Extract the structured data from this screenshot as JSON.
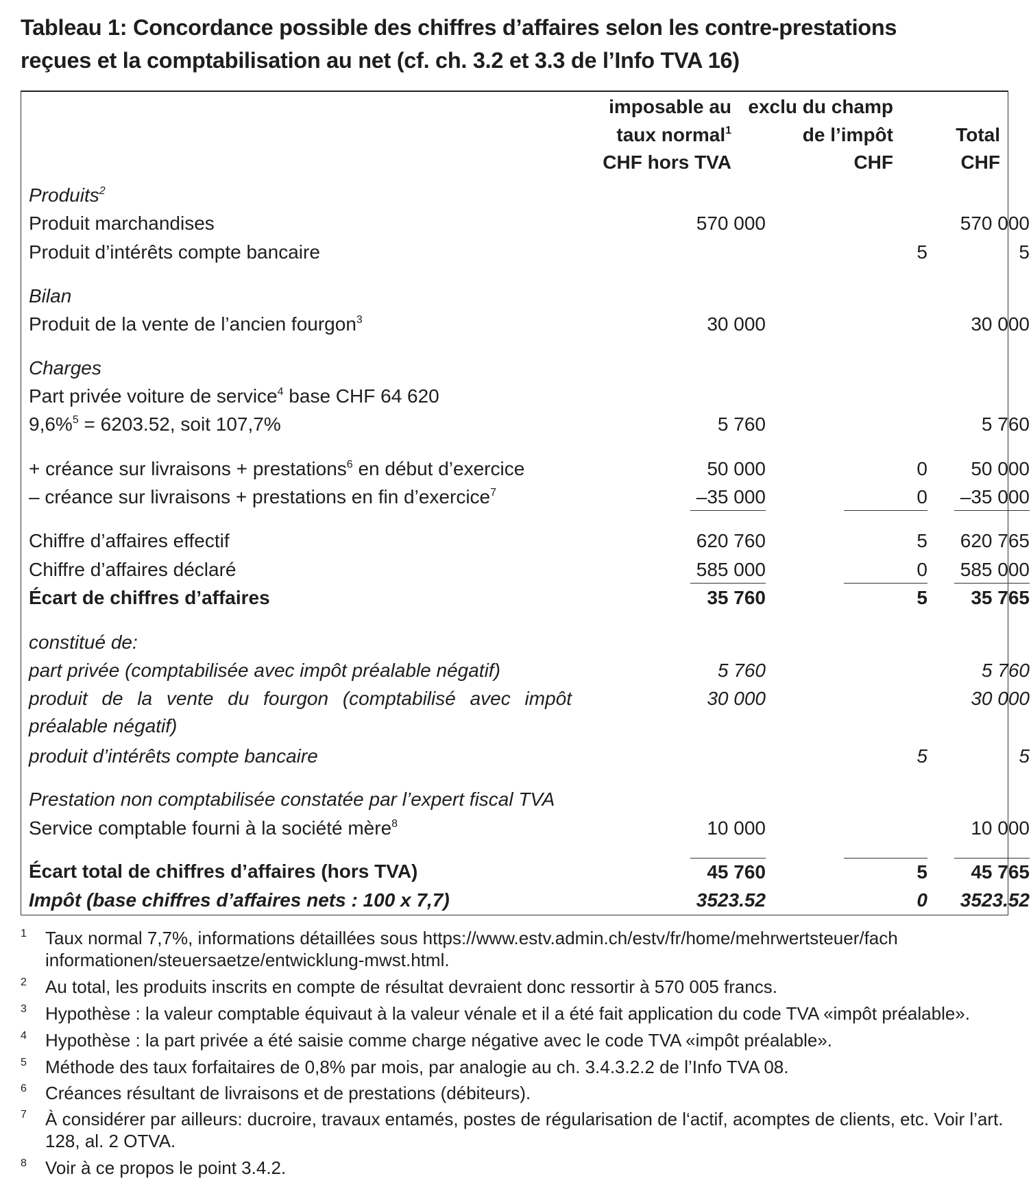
{
  "title": {
    "line1": "Tableau 1: Concordance possible des chiffres d’affaires selon les contre-prestations",
    "line2": "reçues et la comptabilisation au net (cf. ch. 3.2 et 3.3 de l’Info TVA 16)"
  },
  "headers": [
    {
      "lines": [
        "imposable au",
        "taux normal",
        "CHF hors TVA"
      ],
      "sup": "1"
    },
    {
      "lines": [
        "exclu du champ",
        "de l’impôt",
        "CHF"
      ],
      "sup": ""
    },
    {
      "lines": [
        "",
        "Total",
        "CHF"
      ],
      "sup": ""
    }
  ],
  "rows": [
    {
      "label": "Produits",
      "sup": "2",
      "after": "",
      "style": "italic",
      "values": [
        "",
        "",
        ""
      ]
    },
    {
      "label": "Produit marchandises",
      "sup": "",
      "after": "",
      "style": "",
      "values": [
        "570 000",
        "",
        "570 000"
      ]
    },
    {
      "label": "Produit d’intérêts compte bancaire",
      "sup": "",
      "after": "",
      "style": "",
      "values": [
        "",
        "5",
        "5"
      ]
    },
    {
      "label": "Bilan",
      "sup": "",
      "after": "",
      "style": "italic",
      "values": [
        "",
        "",
        ""
      ]
    },
    {
      "label": "Produit de la vente de l’ancien fourgon",
      "sup": "3",
      "after": "",
      "style": "",
      "values": [
        "30 000",
        "",
        "30 000"
      ]
    },
    {
      "label": "Charges",
      "sup": "",
      "after": "",
      "style": "italic",
      "values": [
        "",
        "",
        ""
      ]
    },
    {
      "label": "Part privée voiture de service",
      "sup": "4",
      "after": " base CHF 64 620",
      "style": "",
      "values": [
        "",
        "",
        ""
      ]
    },
    {
      "label": "9,6%",
      "sup": "5",
      "after": " = 6203.52, soit 107,7%",
      "style": "",
      "values": [
        "5 760",
        "",
        "5 760"
      ]
    },
    {
      "label": "+ créance sur livraisons + prestations",
      "sup": "6",
      "after": " en début d’exercice",
      "style": "",
      "values": [
        "50 000",
        "0",
        "50 000"
      ]
    },
    {
      "label": "– créance sur livraisons + prestations en fin d’exercice",
      "sup": "7",
      "after": "",
      "style": "",
      "values": [
        "–35 000",
        "0",
        "–35 000"
      ],
      "underline": true
    },
    {
      "label": "Chiffre d’affaires effectif",
      "sup": "",
      "after": "",
      "style": "",
      "values": [
        "620 760",
        "5",
        "620 765"
      ]
    },
    {
      "label": "Chiffre d’affaires déclaré",
      "sup": "",
      "after": "",
      "style": "",
      "values": [
        "585 000",
        "0",
        "585 000"
      ],
      "underline": true
    },
    {
      "label": "Écart de chiffres d’affaires",
      "sup": "",
      "after": "",
      "style": "bold",
      "values": [
        "35 760",
        "5",
        "35 765"
      ]
    },
    {
      "label": "constitué de:",
      "sup": "",
      "after": "",
      "style": "italic",
      "values": [
        "",
        "",
        ""
      ]
    },
    {
      "label": "part privée (comptabilisée avec impôt préalable négatif)",
      "sup": "",
      "after": "",
      "style": "italic",
      "values": [
        "5 760",
        "",
        "5 760"
      ]
    },
    {
      "label": "produit de la vente du fourgon (comptabilisé avec impôt préalable négatif)",
      "sup": "",
      "after": "",
      "style": "italic",
      "values": [
        "30 000",
        "",
        "30 000"
      ],
      "wrap": true
    },
    {
      "label": "produit d’intérêts compte bancaire",
      "sup": "",
      "after": "",
      "style": "italic",
      "values": [
        "",
        "5",
        "5"
      ]
    },
    {
      "label": "Prestation non comptabilisée constatée par l’expert fiscal TVA",
      "sup": "",
      "after": "",
      "style": "italic",
      "values": [
        "",
        "",
        ""
      ]
    },
    {
      "label": "Service comptable fourni à la société mère",
      "sup": "8",
      "after": "",
      "style": "",
      "values": [
        "10 000",
        "",
        "10 000"
      ]
    },
    {
      "label": "Écart total de chiffres d’affaires (hors TVA)",
      "sup": "",
      "after": "",
      "style": "bold",
      "values": [
        "45 760",
        "5",
        "45 765"
      ],
      "overline": true
    },
    {
      "label": "Impôt (base chiffres d’affaires nets : 100 x 7,7)",
      "sup": "",
      "after": "",
      "style": "bold italic",
      "values": [
        "3523.52",
        "0",
        "3523.52"
      ]
    }
  ],
  "footnotes": [
    {
      "num": "1",
      "text": "Taux normal 7,7%, informations détaillées sous https://www.estv.admin.ch/estv/fr/home/mehrwertsteuer/fach informationen/steuersaetze/entwicklung-mwst.html."
    },
    {
      "num": "2",
      "text": "Au total, les produits inscrits en compte de résultat devraient donc ressortir à 570 005 francs."
    },
    {
      "num": "3",
      "text": "Hypothèse : la valeur comptable équivaut à la valeur vénale et il a été fait application du code TVA «impôt préalable»."
    },
    {
      "num": "4",
      "text": "Hypothèse : la part privée a été saisie comme charge négative avec le code TVA «impôt préalable»."
    },
    {
      "num": "5",
      "text": "Méthode des taux forfaitaires de 0,8% par mois, par analogie au ch. 3.4.3.2.2 de l’Info TVA 08."
    },
    {
      "num": "6",
      "text": "Créances résultant de livraisons et de prestations (débiteurs)."
    },
    {
      "num": "7",
      "text": "À considérer par ailleurs: ducroire, travaux entamés, postes de régularisation de l‘actif, acomptes de clients, etc. Voir l’art. 128, al. 2 OTVA."
    },
    {
      "num": "8",
      "text": "Voir à ce propos le point 3.4.2."
    }
  ]
}
